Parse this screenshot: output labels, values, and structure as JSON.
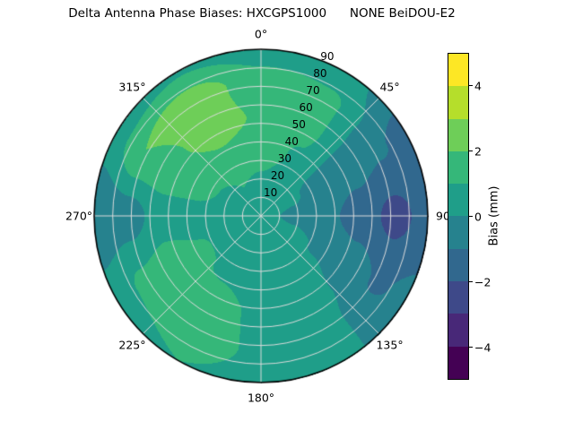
{
  "title": "Delta Antenna Phase Biases: HXCGPS1000      NONE BeiDOU-E2",
  "colorbar": {
    "label": "Bias (mm)",
    "vmin": -5,
    "vmax": 5,
    "band_colors": [
      "#440154",
      "#482878",
      "#3e4989",
      "#31688e",
      "#26828e",
      "#1f9e89",
      "#35b779",
      "#6ece58",
      "#b5de2b",
      "#fde725"
    ],
    "ticks": [
      {
        "value": 4,
        "label": "4"
      },
      {
        "value": 2,
        "label": "2"
      },
      {
        "value": 0,
        "label": "0"
      },
      {
        "value": -2,
        "label": "−2"
      },
      {
        "value": -4,
        "label": "−4"
      }
    ]
  },
  "polar_axis": {
    "grid_color": "#dcdcdc",
    "radial_label_angle_deg": 22.5,
    "azimuth_ticks": [
      {
        "deg": 0,
        "label": "0°"
      },
      {
        "deg": 45,
        "label": "45°"
      },
      {
        "deg": 90,
        "label": "90"
      },
      {
        "deg": 135,
        "label": "135°"
      },
      {
        "deg": 180,
        "label": "180°"
      },
      {
        "deg": 225,
        "label": "225°"
      },
      {
        "deg": 270,
        "label": "270°"
      },
      {
        "deg": 315,
        "label": "315°"
      }
    ],
    "radial_ticks": [
      {
        "value": 10,
        "label": "10"
      },
      {
        "value": 20,
        "label": "20"
      },
      {
        "value": 30,
        "label": "30"
      },
      {
        "value": 40,
        "label": "40"
      },
      {
        "value": 50,
        "label": "50"
      },
      {
        "value": 60,
        "label": "60"
      },
      {
        "value": 70,
        "label": "70"
      },
      {
        "value": 80,
        "label": "80"
      },
      {
        "value": 90,
        "label": "90"
      }
    ]
  },
  "chart_data": {
    "type": "heatmap",
    "title": "Delta Antenna Phase Biases: HXCGPS1000      NONE BeiDOU-E2",
    "colormap": "viridis",
    "units": "mm",
    "value_label": "Bias (mm)",
    "levels": [
      -5,
      -4,
      -3,
      -2,
      -1,
      0,
      1,
      2,
      3,
      4,
      5
    ],
    "azimuth_deg": [
      0,
      30,
      60,
      90,
      120,
      150,
      180,
      210,
      240,
      270,
      300,
      330
    ],
    "radius_fraction": [
      0,
      0.2,
      0.4,
      0.6,
      0.8,
      1
    ],
    "values": [
      [
        0.5,
        0.5,
        0.4,
        0.3,
        0.4,
        0.5,
        0.5,
        0.5,
        0.5,
        0.5,
        0.5,
        0.5
      ],
      [
        0.8,
        0.5,
        0.1,
        -0.2,
        0.2,
        0.4,
        0.5,
        0.6,
        0.6,
        0.5,
        0.7,
        1.0
      ],
      [
        1.5,
        0.9,
        -0.3,
        -0.8,
        -0.1,
        0.5,
        0.6,
        0.9,
        1.1,
        0.7,
        1.4,
        1.8
      ],
      [
        1.9,
        1.2,
        -0.6,
        -1.5,
        -0.5,
        0.4,
        0.8,
        1.4,
        1.5,
        0.5,
        1.8,
        2.4
      ],
      [
        1.4,
        1.2,
        -0.9,
        -2.3,
        -1.1,
        0.3,
        0.8,
        1.6,
        1.2,
        -0.5,
        2.0,
        2.6
      ],
      [
        0.6,
        0.5,
        -1.3,
        -1.7,
        -0.8,
        0.2,
        0.6,
        1.0,
        0.4,
        -0.9,
        0.5,
        0.9
      ]
    ]
  }
}
